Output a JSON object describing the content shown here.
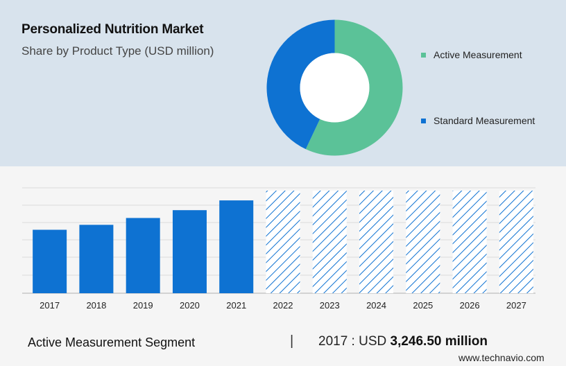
{
  "header": {
    "title": "Personalized Nutrition Market",
    "subtitle": "Share by Product Type (USD million)"
  },
  "chart_data": [
    {
      "type": "pie",
      "style": "donut",
      "categories": [
        "Active Measurement",
        "Standard Measurement"
      ],
      "values": [
        57,
        43
      ],
      "colors": [
        "#5bc298",
        "#0e72d2"
      ],
      "legend": "right"
    },
    {
      "type": "bar",
      "categories": [
        "2017",
        "2018",
        "2019",
        "2020",
        "2021",
        "2022",
        "2023",
        "2024",
        "2025",
        "2026",
        "2027"
      ],
      "values": [
        3246.5,
        3500,
        3850,
        4250,
        4750,
        5250,
        5250,
        5250,
        5250,
        5250,
        5250
      ],
      "forecast_from": "2022",
      "color": "#0e72d2",
      "grid": true
    }
  ],
  "footer": {
    "segment": "Active Measurement Segment",
    "separator": "|",
    "year_label": "2017 : USD",
    "value": "3,246.50 million",
    "source": "www.technavio.com"
  }
}
